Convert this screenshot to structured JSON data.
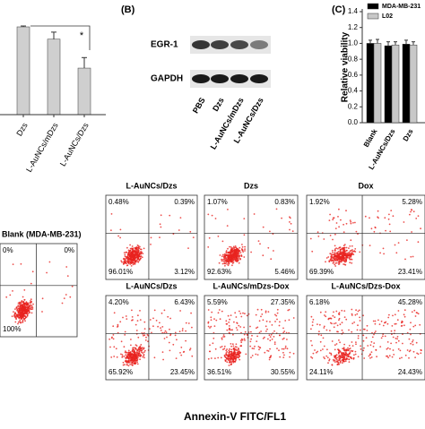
{
  "chart_data": [
    {
      "type": "bar",
      "categories": [
        "Dzs",
        "L-AuNCs/mDzs",
        "L-AuNCs/Dzs"
      ],
      "values": [
        1.0,
        0.86,
        0.53
      ],
      "errors": [
        0.01,
        0.08,
        0.12
      ],
      "color": "#cfcfcf",
      "ylim": [
        0,
        1.0
      ],
      "annotation": "*"
    },
    {
      "type": "bar",
      "panel_label": "(C)",
      "y_label": "Relative viability",
      "categories": [
        "Blank",
        "L-AuNCs/Dzs",
        "Dzs"
      ],
      "series": [
        {
          "name": "MDA-MB-231",
          "color": "#000000",
          "values": [
            1.0,
            0.97,
            0.99
          ],
          "errors": [
            0.04,
            0.05,
            0.05
          ]
        },
        {
          "name": "L02",
          "color": "#c8c8c8",
          "values": [
            1.0,
            0.98,
            0.98
          ],
          "errors": [
            0.05,
            0.04,
            0.04
          ]
        }
      ],
      "ylim": [
        0,
        1.4
      ],
      "yticks": [
        {
          "value": 0,
          "label": "0.0"
        },
        0.2,
        0.4,
        0.6,
        0.8,
        {
          "value": 1,
          "label": "1.0"
        },
        1.2,
        1.4
      ],
      "legend": "upper-left"
    }
  ],
  "blot": {
    "panel_label": "(B)",
    "rows": [
      "EGR-1",
      "GAPDH"
    ],
    "lanes": [
      "PBS",
      "Dzs",
      "L-AuNCs/mDzs",
      "L-AuNCs/Dzs"
    ]
  },
  "flow": {
    "x_axis_label": "Annexin-V FITC/FL1",
    "plots": [
      {
        "title": "Blank (MDA-MB-231)",
        "upper_left": "0%",
        "upper_right": "0%",
        "lower_left": "100%"
      },
      {
        "title": "L-AuNCs/Dzs",
        "upper_left": "0.48%",
        "upper_right": "0.39%",
        "lower_left": "96.01%",
        "lower_right": "3.12%"
      },
      {
        "title": "Dzs",
        "upper_left": "1.07%",
        "upper_right": "0.83%",
        "lower_left": "92.63%",
        "lower_right": "5.46%"
      },
      {
        "title": "Dox",
        "upper_left": "1.92%",
        "upper_right": "5.28%",
        "lower_left": "69.39%",
        "lower_right": "23.41%"
      },
      {
        "title": "L-AuNCs/Dzs",
        "upper_left": "4.20%",
        "upper_right": "6.43%",
        "lower_left": "65.92%",
        "lower_right": "23.45%"
      },
      {
        "title": "L-AuNCs/mDzs-Dox",
        "upper_left": "5.59%",
        "upper_right": "27.35%",
        "lower_left": "36.51%",
        "lower_right": "30.55%"
      },
      {
        "title": "L-AuNCs/Dzs-Dox",
        "upper_left": "6.18%",
        "upper_right": "45.28%",
        "lower_left": "24.11%",
        "lower_right": "24.43%"
      }
    ]
  }
}
